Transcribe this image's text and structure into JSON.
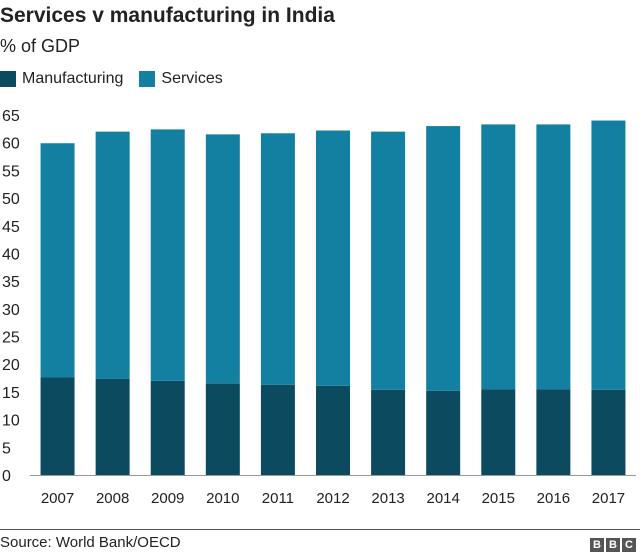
{
  "chart_data": {
    "type": "bar",
    "stacked": true,
    "title": "Services v manufacturing in India",
    "subtitle": "% of GDP",
    "categories": [
      "2007",
      "2008",
      "2009",
      "2010",
      "2011",
      "2012",
      "2013",
      "2014",
      "2015",
      "2016",
      "2017"
    ],
    "series": [
      {
        "name": "Manufacturing",
        "color": "#0c4b5f",
        "values": [
          17.6,
          17.4,
          17.0,
          16.5,
          16.3,
          16.1,
          15.4,
          15.2,
          15.5,
          15.5,
          15.4
        ]
      },
      {
        "name": "Services",
        "color": "#1380a1",
        "values": [
          42.3,
          44.6,
          45.4,
          45.0,
          45.4,
          46.1,
          46.6,
          47.8,
          47.8,
          47.8,
          48.6
        ]
      }
    ],
    "yticks": [
      "0",
      "5",
      "10",
      "15",
      "20",
      "25",
      "30",
      "35",
      "40",
      "45",
      "50",
      "55",
      "60",
      "65"
    ],
    "ylim": [
      0,
      65
    ],
    "grid": false,
    "legend": "top-left",
    "source": "Source: World Bank/OECD"
  },
  "logo": "BBC"
}
